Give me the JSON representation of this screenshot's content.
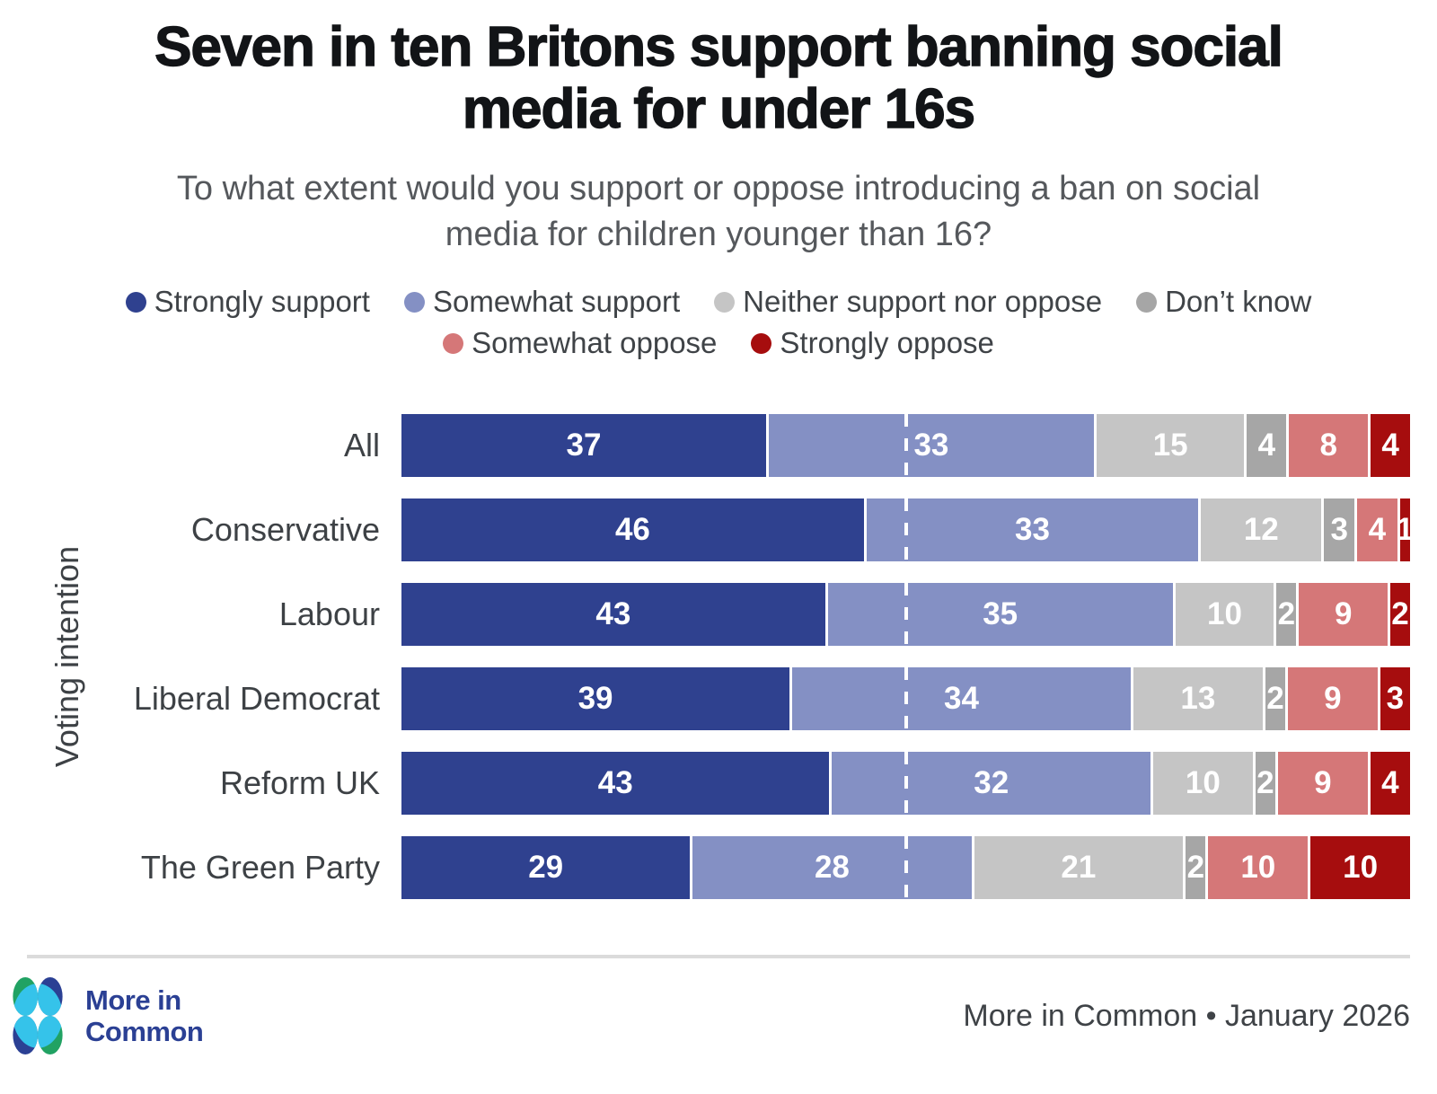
{
  "header": {
    "title_lines": [
      "Seven in ten Britons support banning social",
      "media for under 16s"
    ],
    "subtitle_lines": [
      "To what extent would you support or oppose introducing a ban on social",
      "media for children younger than 16?"
    ]
  },
  "legend": {
    "row_sizes": [
      4,
      2
    ]
  },
  "chart_data": {
    "type": "bar",
    "stacked": true,
    "orientation": "horizontal",
    "title": "Seven in ten Britons support banning social media for under 16s",
    "subtitle": "To what extent would you support or oppose introducing a ban on social media for children younger than 16?",
    "xlabel": "",
    "ylabel": "Voting intention",
    "xlim_pct": [
      0,
      100
    ],
    "grid": false,
    "legend_position": "top",
    "value_labels": "inside-white-bold",
    "categories": [
      "All",
      "Conservative",
      "Labour",
      "Liberal Democrat",
      "Reform UK",
      "The Green Party"
    ],
    "series": [
      {
        "name": "Strongly support",
        "color": "#2f418f",
        "values": [
          37,
          46,
          43,
          39,
          43,
          29
        ]
      },
      {
        "name": "Somewhat support",
        "color": "#8490c4",
        "values": [
          33,
          33,
          35,
          34,
          32,
          28
        ]
      },
      {
        "name": "Neither support nor oppose",
        "color": "#c5c5c5",
        "values": [
          15,
          12,
          10,
          13,
          10,
          21
        ]
      },
      {
        "name": "Don’t know",
        "color": "#a6a6a6",
        "values": [
          4,
          3,
          2,
          2,
          2,
          2
        ]
      },
      {
        "name": "Somewhat oppose",
        "color": "#d57778",
        "values": [
          8,
          4,
          9,
          9,
          9,
          10
        ]
      },
      {
        "name": "Strongly oppose",
        "color": "#a60d0e",
        "values": [
          4,
          1,
          2,
          3,
          4,
          10
        ]
      }
    ],
    "hatched_category": "All",
    "reference_line_pct": 50,
    "reference_line_style": "white dashed vertical"
  },
  "footer": {
    "brand_lines": [
      "More in",
      "Common"
    ],
    "source_text": "More in Common • January 2026",
    "brand_color": "#2b4094",
    "logo_colors": {
      "green": "#21a263",
      "cyan": "#35c3ea",
      "blue": "#2b4094"
    }
  }
}
